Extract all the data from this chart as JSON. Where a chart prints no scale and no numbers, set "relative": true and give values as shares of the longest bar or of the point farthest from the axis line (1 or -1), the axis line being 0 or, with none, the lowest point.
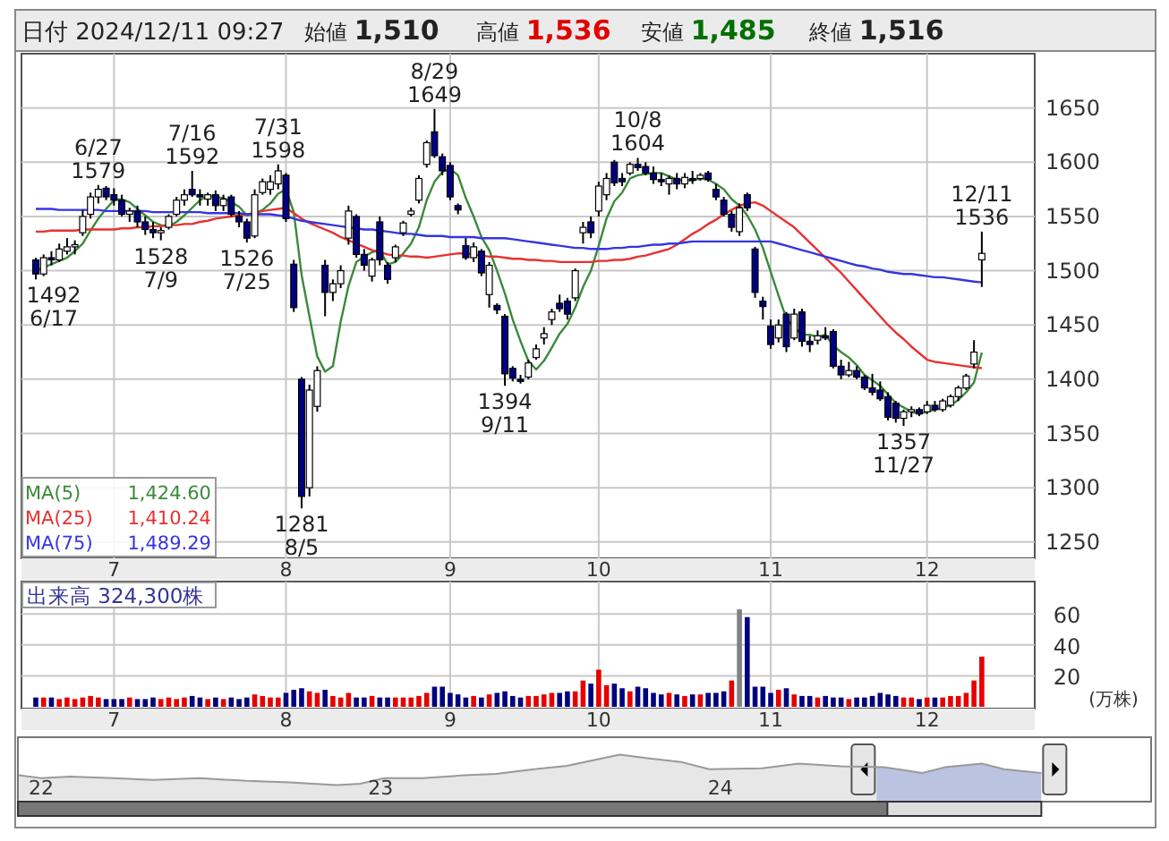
{
  "chart_data": [
    {
      "type": "candlestick",
      "title": "日付 2024/12/11 09:27",
      "legend": "bottom left",
      "grid": true,
      "ylim": [
        1235,
        1700
      ],
      "yticks": [
        1250,
        1300,
        1350,
        1400,
        1450,
        1500,
        1550,
        1600,
        1650
      ],
      "categories": [
        null,
        null,
        null,
        null,
        null,
        null,
        null,
        null,
        null,
        null,
        "7",
        null,
        null,
        null,
        null,
        null,
        null,
        null,
        null,
        null,
        null,
        null,
        null,
        null,
        null,
        null,
        null,
        null,
        null,
        null,
        null,
        null,
        "8",
        null,
        null,
        null,
        null,
        null,
        null,
        null,
        null,
        null,
        null,
        null,
        null,
        null,
        null,
        null,
        null,
        null,
        null,
        null,
        null,
        "9",
        null,
        null,
        null,
        null,
        null,
        null,
        null,
        null,
        null,
        null,
        null,
        null,
        null,
        null,
        null,
        null,
        null,
        null,
        "10",
        null,
        null,
        null,
        null,
        null,
        null,
        null,
        null,
        null,
        null,
        null,
        null,
        null,
        null,
        null,
        null,
        null,
        null,
        null,
        null,
        null,
        "11",
        null,
        null,
        null,
        null,
        null,
        null,
        null,
        null,
        null,
        null,
        null,
        null,
        null,
        null,
        null,
        null,
        null,
        null,
        null,
        "12",
        null,
        null,
        null,
        null,
        null,
        null,
        null
      ],
      "ohlc": [
        [
          1510,
          1512,
          1492,
          1497
        ],
        [
          1497,
          1515,
          1495,
          1512
        ],
        [
          1512,
          1518,
          1505,
          1510
        ],
        [
          1510,
          1525,
          1508,
          1520
        ],
        [
          1518,
          1530,
          1515,
          1522
        ],
        [
          1522,
          1528,
          1515,
          1524
        ],
        [
          1535,
          1556,
          1532,
          1550
        ],
        [
          1552,
          1572,
          1548,
          1568
        ],
        [
          1568,
          1579,
          1562,
          1575
        ],
        [
          1576,
          1578,
          1565,
          1568
        ],
        [
          1570,
          1576,
          1560,
          1565
        ],
        [
          1565,
          1570,
          1550,
          1552
        ],
        [
          1552,
          1558,
          1545,
          1555
        ],
        [
          1555,
          1560,
          1540,
          1545
        ],
        [
          1545,
          1550,
          1533,
          1538
        ],
        [
          1538,
          1545,
          1530,
          1535
        ],
        [
          1535,
          1540,
          1528,
          1537
        ],
        [
          1540,
          1552,
          1538,
          1550
        ],
        [
          1552,
          1568,
          1550,
          1565
        ],
        [
          1565,
          1575,
          1560,
          1570
        ],
        [
          1575,
          1592,
          1568,
          1570
        ],
        [
          1570,
          1575,
          1560,
          1568
        ],
        [
          1566,
          1572,
          1560,
          1570
        ],
        [
          1570,
          1574,
          1555,
          1560
        ],
        [
          1560,
          1570,
          1555,
          1566
        ],
        [
          1568,
          1570,
          1550,
          1552
        ],
        [
          1550,
          1555,
          1540,
          1545
        ],
        [
          1545,
          1548,
          1526,
          1530
        ],
        [
          1532,
          1575,
          1530,
          1570
        ],
        [
          1572,
          1585,
          1570,
          1582
        ],
        [
          1575,
          1588,
          1570,
          1582
        ],
        [
          1580,
          1598,
          1575,
          1592
        ],
        [
          1588,
          1590,
          1545,
          1548
        ],
        [
          1506,
          1510,
          1462,
          1466
        ],
        [
          1400,
          1402,
          1281,
          1292
        ],
        [
          1300,
          1395,
          1292,
          1390
        ],
        [
          1375,
          1412,
          1370,
          1408
        ],
        [
          1505,
          1510,
          1458,
          1480
        ],
        [
          1480,
          1492,
          1472,
          1488
        ],
        [
          1488,
          1505,
          1484,
          1500
        ],
        [
          1530,
          1560,
          1524,
          1555
        ],
        [
          1550,
          1552,
          1512,
          1515
        ],
        [
          1515,
          1520,
          1500,
          1505
        ],
        [
          1495,
          1512,
          1490,
          1510
        ],
        [
          1545,
          1550,
          1505,
          1510
        ],
        [
          1505,
          1508,
          1488,
          1492
        ],
        [
          1512,
          1524,
          1508,
          1522
        ],
        [
          1535,
          1546,
          1532,
          1544
        ],
        [
          1552,
          1558,
          1550,
          1555
        ],
        [
          1565,
          1588,
          1562,
          1585
        ],
        [
          1598,
          1620,
          1595,
          1618
        ],
        [
          1628,
          1649,
          1604,
          1606
        ],
        [
          1605,
          1608,
          1588,
          1592
        ],
        [
          1597,
          1600,
          1565,
          1568
        ],
        [
          1560,
          1562,
          1552,
          1556
        ],
        [
          1523,
          1530,
          1510,
          1512
        ],
        [
          1512,
          1526,
          1508,
          1522
        ],
        [
          1518,
          1520,
          1495,
          1498
        ],
        [
          1478,
          1508,
          1466,
          1505
        ],
        [
          1468,
          1470,
          1460,
          1464
        ],
        [
          1458,
          1460,
          1394,
          1405
        ],
        [
          1410,
          1412,
          1398,
          1401
        ],
        [
          1400,
          1404,
          1396,
          1398
        ],
        [
          1402,
          1418,
          1400,
          1415
        ],
        [
          1420,
          1432,
          1418,
          1428
        ],
        [
          1438,
          1448,
          1432,
          1442
        ],
        [
          1455,
          1465,
          1450,
          1462
        ],
        [
          1470,
          1478,
          1462,
          1465
        ],
        [
          1472,
          1475,
          1455,
          1460
        ],
        [
          1475,
          1502,
          1472,
          1500
        ],
        [
          1535,
          1545,
          1525,
          1540
        ],
        [
          1545,
          1550,
          1530,
          1535
        ],
        [
          1555,
          1582,
          1550,
          1578
        ],
        [
          1570,
          1590,
          1565,
          1585
        ],
        [
          1600,
          1602,
          1578,
          1581
        ],
        [
          1585,
          1590,
          1578,
          1582
        ],
        [
          1590,
          1600,
          1588,
          1598
        ],
        [
          1598,
          1604,
          1592,
          1595
        ],
        [
          1596,
          1600,
          1588,
          1590
        ],
        [
          1590,
          1596,
          1580,
          1584
        ],
        [
          1584,
          1590,
          1578,
          1582
        ],
        [
          1580,
          1588,
          1570,
          1585
        ],
        [
          1585,
          1590,
          1575,
          1580
        ],
        [
          1580,
          1590,
          1576,
          1586
        ],
        [
          1585,
          1592,
          1580,
          1584
        ],
        [
          1585,
          1590,
          1583,
          1588
        ],
        [
          1590,
          1592,
          1582,
          1584
        ],
        [
          1575,
          1580,
          1565,
          1568
        ],
        [
          1565,
          1568,
          1550,
          1552
        ],
        [
          1552,
          1555,
          1536,
          1540
        ],
        [
          1536,
          1562,
          1532,
          1558
        ],
        [
          1570,
          1572,
          1555,
          1558
        ],
        [
          1520,
          1522,
          1475,
          1480
        ],
        [
          1472,
          1476,
          1455,
          1467
        ],
        [
          1449,
          1455,
          1428,
          1432
        ],
        [
          1438,
          1455,
          1434,
          1450
        ],
        [
          1460,
          1462,
          1425,
          1430
        ],
        [
          1438,
          1465,
          1436,
          1460
        ],
        [
          1462,
          1465,
          1430,
          1435
        ],
        [
          1435,
          1440,
          1425,
          1432
        ],
        [
          1436,
          1445,
          1432,
          1440
        ],
        [
          1440,
          1448,
          1436,
          1438
        ],
        [
          1444,
          1446,
          1410,
          1412
        ],
        [
          1412,
          1418,
          1400,
          1404
        ],
        [
          1404,
          1416,
          1402,
          1408
        ],
        [
          1408,
          1412,
          1400,
          1402
        ],
        [
          1402,
          1404,
          1390,
          1392
        ],
        [
          1392,
          1405,
          1385,
          1388
        ],
        [
          1390,
          1398,
          1380,
          1382
        ],
        [
          1384,
          1388,
          1362,
          1365
        ],
        [
          1378,
          1380,
          1360,
          1364
        ],
        [
          1364,
          1372,
          1357,
          1370
        ],
        [
          1370,
          1375,
          1365,
          1372
        ],
        [
          1372,
          1374,
          1366,
          1368
        ],
        [
          1370,
          1380,
          1368,
          1376
        ],
        [
          1376,
          1380,
          1370,
          1372
        ],
        [
          1372,
          1382,
          1370,
          1380
        ],
        [
          1376,
          1386,
          1374,
          1384
        ],
        [
          1384,
          1394,
          1380,
          1392
        ],
        [
          1392,
          1405,
          1390,
          1403
        ],
        [
          1414,
          1436,
          1410,
          1425
        ],
        [
          1510,
          1536,
          1485,
          1516
        ]
      ],
      "colors": [
        "#000080",
        "#ffffff",
        "#000080",
        "#ffffff",
        "#ffffff",
        "#ffffff",
        "#ffffff",
        "#ffffff",
        "#ffffff",
        "#000080",
        "#000080",
        "#000080",
        "#ffffff",
        "#000080",
        "#000080",
        "#000080",
        "#ffffff",
        "#ffffff",
        "#ffffff",
        "#ffffff",
        "#000080",
        "#000080",
        "#ffffff",
        "#000080",
        "#ffffff",
        "#000080",
        "#000080",
        "#000080",
        "#ffffff",
        "#ffffff",
        "#ffffff",
        "#ffffff",
        "#000080",
        "#000080",
        "#000080",
        "#ffffff",
        "#ffffff",
        "#000080",
        "#ffffff",
        "#ffffff",
        "#ffffff",
        "#000080",
        "#000080",
        "#ffffff",
        "#000080",
        "#000080",
        "#ffffff",
        "#ffffff",
        "#ffffff",
        "#ffffff",
        "#ffffff",
        "#000080",
        "#000080",
        "#000080",
        "#000080",
        "#000080",
        "#ffffff",
        "#000080",
        "#ffffff",
        "#000080",
        "#000080",
        "#000080",
        "#000080",
        "#ffffff",
        "#ffffff",
        "#ffffff",
        "#ffffff",
        "#000080",
        "#000080",
        "#ffffff",
        "#ffffff",
        "#000080",
        "#ffffff",
        "#ffffff",
        "#000080",
        "#000080",
        "#ffffff",
        "#000080",
        "#000080",
        "#000080",
        "#000080",
        "#ffffff",
        "#000080",
        "#ffffff",
        "#000080",
        "#ffffff",
        "#000080",
        "#000080",
        "#000080",
        "#000080",
        "#ffffff",
        "#000080",
        "#000080",
        "#000080",
        "#000080",
        "#ffffff",
        "#000080",
        "#ffffff",
        "#000080",
        "#000080",
        "#ffffff",
        "#000080",
        "#000080",
        "#000080",
        "#ffffff",
        "#000080",
        "#000080",
        "#000080",
        "#000080",
        "#000080",
        "#000080",
        "#ffffff",
        "#ffffff",
        "#000080",
        "#ffffff",
        "#000080",
        "#ffffff",
        "#ffffff",
        "#ffffff",
        "#ffffff",
        "#ffffff",
        "#ffffff"
      ],
      "series": [
        {
          "name": "MA(5)",
          "type": "line",
          "color": "#3a8a3a",
          "values": [
            1500,
            1503,
            1506,
            1509,
            1512,
            1518,
            1525,
            1537,
            1548,
            1557,
            1565,
            1566,
            1563,
            1557,
            1551,
            1545,
            1542,
            1541,
            1545,
            1551,
            1558,
            1565,
            1569,
            1568,
            1567,
            1563,
            1559,
            1551,
            1553,
            1556,
            1562,
            1571,
            1575,
            1554,
            1496,
            1458,
            1421,
            1407,
            1412,
            1453,
            1486,
            1508,
            1513,
            1517,
            1519,
            1506,
            1508,
            1516,
            1525,
            1540,
            1565,
            1582,
            1591,
            1594,
            1588,
            1567,
            1550,
            1531,
            1519,
            1500,
            1479,
            1455,
            1435,
            1417,
            1409,
            1417,
            1429,
            1442,
            1451,
            1466,
            1485,
            1500,
            1523,
            1548,
            1564,
            1572,
            1585,
            1588,
            1589,
            1590,
            1590,
            1587,
            1584,
            1583,
            1583,
            1585,
            1584,
            1580,
            1575,
            1566,
            1560,
            1551,
            1538,
            1521,
            1499,
            1477,
            1456,
            1448,
            1441,
            1441,
            1439,
            1441,
            1431,
            1425,
            1420,
            1413,
            1404,
            1399,
            1394,
            1386,
            1378,
            1374,
            1370,
            1368,
            1370,
            1372,
            1374,
            1376,
            1381,
            1388,
            1397,
            1424.6
          ]
        },
        {
          "name": "MA(25)",
          "type": "line",
          "color": "#e83030",
          "values": [
            1536,
            1536,
            1537,
            1537,
            1537,
            1537,
            1538,
            1538,
            1538,
            1538,
            1538,
            1539,
            1539,
            1540,
            1540,
            1541,
            1541,
            1542,
            1542,
            1543,
            1543,
            1545,
            1546,
            1548,
            1549,
            1550,
            1551,
            1552,
            1553,
            1555,
            1556,
            1557,
            1558,
            1553,
            1548,
            1544,
            1541,
            1538,
            1535,
            1531,
            1528,
            1525,
            1522,
            1519,
            1517,
            1515,
            1514,
            1514,
            1513,
            1513,
            1512,
            1513,
            1514,
            1515,
            1516,
            1516,
            1515,
            1514,
            1513,
            1513,
            1512,
            1511,
            1511,
            1510,
            1510,
            1509,
            1509,
            1508,
            1508,
            1508,
            1508,
            1508,
            1509,
            1509,
            1510,
            1510,
            1511,
            1513,
            1514,
            1516,
            1518,
            1520,
            1524,
            1529,
            1534,
            1538,
            1543,
            1547,
            1552,
            1556,
            1560,
            1562,
            1563,
            1560,
            1555,
            1550,
            1545,
            1540,
            1533,
            1526,
            1519,
            1512,
            1505,
            1498,
            1490,
            1482,
            1474,
            1466,
            1458,
            1450,
            1443,
            1437,
            1430,
            1424,
            1418,
            1416,
            1415,
            1414,
            1413,
            1412,
            1411,
            1410.24
          ]
        },
        {
          "name": "MA(75)",
          "type": "line",
          "color": "#3535e0",
          "values": [
            1557,
            1557,
            1557,
            1556,
            1556,
            1556,
            1556,
            1556,
            1556,
            1555,
            1555,
            1555,
            1555,
            1555,
            1555,
            1554,
            1554,
            1554,
            1554,
            1554,
            1554,
            1554,
            1553,
            1553,
            1553,
            1553,
            1553,
            1552,
            1552,
            1552,
            1552,
            1551,
            1550,
            1548,
            1546,
            1545,
            1544,
            1543,
            1542,
            1541,
            1540,
            1539,
            1538,
            1538,
            1537,
            1536,
            1535,
            1534,
            1534,
            1533,
            1532,
            1532,
            1532,
            1531,
            1531,
            1531,
            1531,
            1530,
            1530,
            1530,
            1530,
            1529,
            1528,
            1527,
            1526,
            1525,
            1524,
            1523,
            1522,
            1521,
            1521,
            1520,
            1520,
            1520,
            1521,
            1521,
            1522,
            1522,
            1523,
            1524,
            1524,
            1525,
            1525,
            1526,
            1527,
            1527,
            1527,
            1527,
            1527,
            1527,
            1527,
            1527,
            1527,
            1527,
            1527,
            1525,
            1523,
            1521,
            1519,
            1517,
            1515,
            1513,
            1511,
            1509,
            1507,
            1505,
            1504,
            1502,
            1501,
            1499,
            1498,
            1497,
            1497,
            1496,
            1495,
            1494,
            1494,
            1493,
            1492,
            1491,
            1490,
            1489.29
          ]
        }
      ],
      "annotations": [
        "始値 1,510",
        "高値 1,536",
        "安値 1,485",
        "終値 1,516",
        "1,424.60",
        "1,410.24",
        "1,489.29",
        {
          "text": "1492\n6/17",
          "y": 1492
        },
        {
          "text": "6/27\n1579",
          "y": 1579
        },
        {
          "text": "1528\n7/9",
          "y": 1528
        },
        {
          "text": "7/16\n1592",
          "y": 1592
        },
        {
          "text": "1526\n7/25",
          "y": 1526
        },
        {
          "text": "7/31\n1598",
          "y": 1598
        },
        {
          "text": "1281\n8/5",
          "y": 1281
        },
        {
          "text": "8/29\n1649",
          "y": 1649
        },
        {
          "text": "1394\n9/11",
          "y": 1394
        },
        {
          "text": "10/8\n1604",
          "y": 1604
        },
        {
          "text": "1357\n11/27",
          "y": 1357
        },
        {
          "text": "12/11\n1536",
          "y": 1536
        }
      ]
    },
    {
      "type": "bar",
      "title": "出来高 324,300株",
      "ylabel": "(万株)",
      "grid": true,
      "ylim": [
        0,
        81
      ],
      "yticks": [
        20,
        40,
        60
      ],
      "categories": [
        null,
        null,
        null,
        null,
        null,
        null,
        null,
        null,
        null,
        null,
        "7",
        null,
        null,
        null,
        null,
        null,
        null,
        null,
        null,
        null,
        null,
        null,
        null,
        null,
        null,
        null,
        null,
        null,
        null,
        null,
        null,
        null,
        "8",
        null,
        null,
        null,
        null,
        null,
        null,
        null,
        null,
        null,
        null,
        null,
        null,
        null,
        null,
        null,
        null,
        null,
        null,
        null,
        null,
        "9",
        null,
        null,
        null,
        null,
        null,
        null,
        null,
        null,
        null,
        null,
        null,
        null,
        null,
        null,
        null,
        null,
        null,
        null,
        "10",
        null,
        null,
        null,
        null,
        null,
        null,
        null,
        null,
        null,
        null,
        null,
        null,
        null,
        null,
        null,
        null,
        null,
        null,
        null,
        null,
        null,
        "11",
        null,
        null,
        null,
        null,
        null,
        null,
        null,
        null,
        null,
        null,
        null,
        null,
        null,
        null,
        null,
        null,
        null,
        null,
        null,
        "12",
        null,
        null,
        null,
        null,
        null,
        null,
        null
      ],
      "values": [
        6,
        6,
        6,
        5,
        6,
        5,
        6,
        7,
        6,
        5,
        5,
        5,
        6,
        5,
        5,
        6,
        5,
        6,
        5,
        6,
        7,
        6,
        5,
        6,
        5,
        6,
        5,
        6,
        8,
        7,
        6,
        6,
        9,
        11,
        12,
        10,
        9,
        11,
        7,
        6,
        9,
        6,
        6,
        7,
        6,
        6,
        6,
        6,
        6,
        7,
        9,
        13,
        13,
        9,
        8,
        6,
        7,
        6,
        8,
        9,
        10,
        7,
        6,
        7,
        7,
        8,
        9,
        9,
        10,
        10,
        17,
        15,
        24,
        14,
        15,
        12,
        10,
        13,
        12,
        9,
        8,
        9,
        8,
        7,
        8,
        8,
        9,
        9,
        10,
        17,
        63,
        58,
        13,
        13,
        9,
        11,
        12,
        8,
        7,
        7,
        6,
        7,
        6,
        6,
        5,
        6,
        6,
        7,
        9,
        8,
        7,
        6,
        6,
        5,
        6,
        6,
        6,
        7,
        7,
        9,
        17,
        32.4
      ],
      "colors": [
        "#000080",
        "#e60000",
        "#000080",
        "#e60000",
        "#e60000",
        "#e60000",
        "#e60000",
        "#e60000",
        "#e60000",
        "#000080",
        "#000080",
        "#000080",
        "#e60000",
        "#000080",
        "#000080",
        "#000080",
        "#e60000",
        "#e60000",
        "#e60000",
        "#e60000",
        "#000080",
        "#000080",
        "#e60000",
        "#000080",
        "#e60000",
        "#000080",
        "#000080",
        "#000080",
        "#e60000",
        "#e60000",
        "#e60000",
        "#e60000",
        "#000080",
        "#000080",
        "#000080",
        "#e60000",
        "#e60000",
        "#000080",
        "#e60000",
        "#e60000",
        "#e60000",
        "#000080",
        "#000080",
        "#e60000",
        "#000080",
        "#000080",
        "#e60000",
        "#e60000",
        "#e60000",
        "#e60000",
        "#e60000",
        "#000080",
        "#000080",
        "#000080",
        "#000080",
        "#000080",
        "#e60000",
        "#000080",
        "#e60000",
        "#000080",
        "#000080",
        "#000080",
        "#000080",
        "#e60000",
        "#e60000",
        "#e60000",
        "#e60000",
        "#000080",
        "#000080",
        "#e60000",
        "#e60000",
        "#000080",
        "#e60000",
        "#e60000",
        "#000080",
        "#000080",
        "#e60000",
        "#000080",
        "#000080",
        "#000080",
        "#000080",
        "#e60000",
        "#000080",
        "#e60000",
        "#000080",
        "#e60000",
        "#000080",
        "#000080",
        "#000080",
        "#e60000",
        "#808080",
        "#000080",
        "#000080",
        "#000080",
        "#000080",
        "#e60000",
        "#000080",
        "#e60000",
        "#000080",
        "#000080",
        "#e60000",
        "#000080",
        "#000080",
        "#000080",
        "#e60000",
        "#000080",
        "#000080",
        "#000080",
        "#000080",
        "#000080",
        "#000080",
        "#e60000",
        "#e60000",
        "#000080",
        "#e60000",
        "#000080",
        "#e60000",
        "#e60000",
        "#e60000",
        "#e60000",
        "#e60000",
        "#e60000"
      ]
    },
    {
      "type": "area",
      "relative": true,
      "color": "#999999",
      "xlim": [
        "2021-12-07",
        "2025-04-08"
      ],
      "xticks": [
        {
          "value": "2022-01-01",
          "label": "22"
        },
        {
          "value": "2023-01-01",
          "label": "23"
        },
        {
          "value": "2024-01-01",
          "label": "24"
        }
      ],
      "x": [
        "2021-12-08",
        "2022-01-01",
        "2022-02-01",
        "2022-03-20",
        "2022-05-01",
        "2022-06-20",
        "2022-08-10",
        "2022-09-25",
        "2022-11-15",
        "2022-12-10",
        "2023-01-05",
        "2023-02-15",
        "2023-04-01",
        "2023-05-05",
        "2023-06-15",
        "2023-07-20",
        "2023-08-15",
        "2023-09-15",
        "2023-10-15",
        "2023-11-20",
        "2023-12-20",
        "2024-02-15",
        "2024-03-25",
        "2024-05-10",
        "2024-06-25",
        "2024-08-05",
        "2024-08-29",
        "2024-10-08",
        "2024-11-01",
        "2024-12-11"
      ],
      "values": [
        0.56,
        0.5,
        0.53,
        0.5,
        0.46,
        0.5,
        0.44,
        0.41,
        0.35,
        0.38,
        0.5,
        0.5,
        0.56,
        0.59,
        0.69,
        0.76,
        0.87,
        1.0,
        0.92,
        0.84,
        0.69,
        0.71,
        0.81,
        0.75,
        0.73,
        0.61,
        0.73,
        0.81,
        0.69,
        0.61
      ],
      "bands": [
        {
          "axis": "x",
          "from": "2024-06-17",
          "to": "2024-12-11",
          "color": "#b4c4f4"
        }
      ]
    }
  ]
}
